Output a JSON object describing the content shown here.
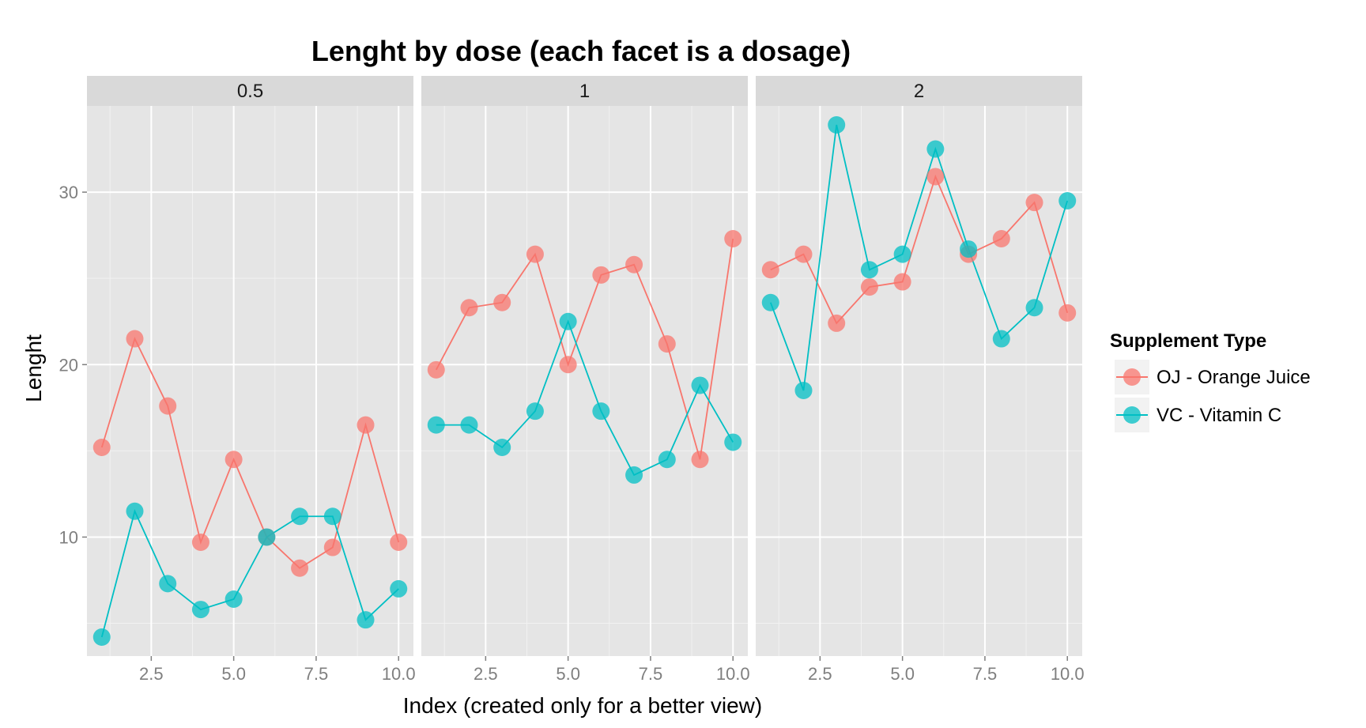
{
  "chart_data": {
    "type": "line",
    "title": "Lenght by dose (each facet is a dosage)",
    "xlabel": "Index (created only for a better view)",
    "ylabel": "Lenght",
    "xlim": [
      0.55,
      10.45
    ],
    "ylim": [
      3.1,
      35.0
    ],
    "x_ticks": [
      2.5,
      5.0,
      7.5,
      10.0
    ],
    "x_tick_labels": [
      "2.5",
      "5.0",
      "7.5",
      "10.0"
    ],
    "y_ticks": [
      10,
      20,
      30
    ],
    "y_tick_labels": [
      "10",
      "20",
      "30"
    ],
    "grid": true,
    "legend_position": "right",
    "legend_title": "Supplement Type",
    "x": [
      1,
      2,
      3,
      4,
      5,
      6,
      7,
      8,
      9,
      10
    ],
    "facets": [
      {
        "label": "0.5",
        "series": [
          {
            "name": "OJ - Orange Juice",
            "color": "#F8766D",
            "values": [
              15.2,
              21.5,
              17.6,
              9.7,
              14.5,
              10.0,
              8.2,
              9.4,
              16.5,
              9.7
            ]
          },
          {
            "name": "VC - Vitamin C",
            "color": "#00BFC4",
            "values": [
              4.2,
              11.5,
              7.3,
              5.8,
              6.4,
              10.0,
              11.2,
              11.2,
              5.2,
              7.0
            ]
          }
        ]
      },
      {
        "label": "1",
        "series": [
          {
            "name": "OJ - Orange Juice",
            "color": "#F8766D",
            "values": [
              19.7,
              23.3,
              23.6,
              26.4,
              20.0,
              25.2,
              25.8,
              21.2,
              14.5,
              27.3
            ]
          },
          {
            "name": "VC - Vitamin C",
            "color": "#00BFC4",
            "values": [
              16.5,
              16.5,
              15.2,
              17.3,
              22.5,
              17.3,
              13.6,
              14.5,
              18.8,
              15.5
            ]
          }
        ]
      },
      {
        "label": "2",
        "series": [
          {
            "name": "OJ - Orange Juice",
            "color": "#F8766D",
            "values": [
              25.5,
              26.4,
              22.4,
              24.5,
              24.8,
              30.9,
              26.4,
              27.3,
              29.4,
              23.0
            ]
          },
          {
            "name": "VC - Vitamin C",
            "color": "#00BFC4",
            "values": [
              23.6,
              18.5,
              33.9,
              25.5,
              26.4,
              32.5,
              26.7,
              21.5,
              23.3,
              29.5
            ]
          }
        ]
      }
    ]
  }
}
